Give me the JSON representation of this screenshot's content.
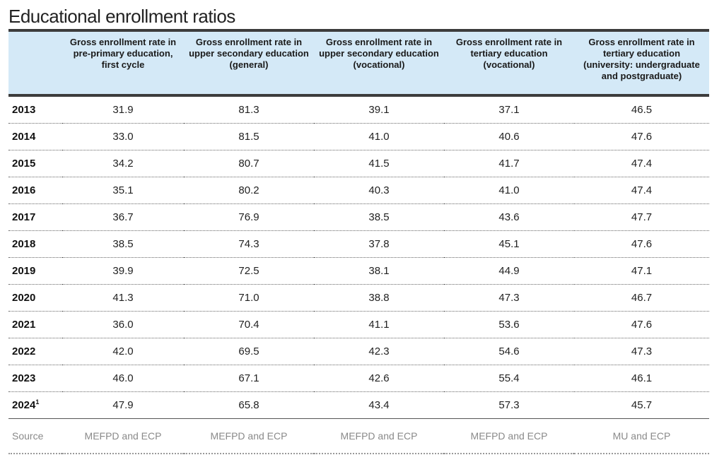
{
  "title": "Educational enrollment ratios",
  "headers": [
    "",
    "Gross enrollment rate in pre-primary education, first cycle",
    "Gross enrollment rate in upper secondary education (general)",
    "Gross enrollment rate in upper secondary education (vocational)",
    "Gross enrollment rate in tertiary education (vocational)",
    "Gross enrollment rate in tertiary education (university: undergraduate and postgraduate)"
  ],
  "rows": [
    {
      "year": "2013",
      "sup": "",
      "values": [
        "31.9",
        "81.3",
        "39.1",
        "37.1",
        "46.5"
      ]
    },
    {
      "year": "2014",
      "sup": "",
      "values": [
        "33.0",
        "81.5",
        "41.0",
        "40.6",
        "47.6"
      ]
    },
    {
      "year": "2015",
      "sup": "",
      "values": [
        "34.2",
        "80.7",
        "41.5",
        "41.7",
        "47.4"
      ]
    },
    {
      "year": "2016",
      "sup": "",
      "values": [
        "35.1",
        "80.2",
        "40.3",
        "41.0",
        "47.4"
      ]
    },
    {
      "year": "2017",
      "sup": "",
      "values": [
        "36.7",
        "76.9",
        "38.5",
        "43.6",
        "47.7"
      ]
    },
    {
      "year": "2018",
      "sup": "",
      "values": [
        "38.5",
        "74.3",
        "37.8",
        "45.1",
        "47.6"
      ]
    },
    {
      "year": "2019",
      "sup": "",
      "values": [
        "39.9",
        "72.5",
        "38.1",
        "44.9",
        "47.1"
      ]
    },
    {
      "year": "2020",
      "sup": "",
      "values": [
        "41.3",
        "71.0",
        "38.8",
        "47.3",
        "46.7"
      ]
    },
    {
      "year": "2021",
      "sup": "",
      "values": [
        "36.0",
        "70.4",
        "41.1",
        "53.6",
        "47.6"
      ]
    },
    {
      "year": "2022",
      "sup": "",
      "values": [
        "42.0",
        "69.5",
        "42.3",
        "54.6",
        "47.3"
      ]
    },
    {
      "year": "2023",
      "sup": "",
      "values": [
        "46.0",
        "67.1",
        "42.6",
        "55.4",
        "46.1"
      ]
    },
    {
      "year": "2024",
      "sup": "1",
      "values": [
        "47.9",
        "65.8",
        "43.4",
        "57.3",
        "45.7"
      ]
    }
  ],
  "source": {
    "label": "Source",
    "values": [
      "MEFPD and ECP",
      "MEFPD and ECP",
      "MEFPD and ECP",
      "MEFPD and ECP",
      "MU and ECP"
    ]
  }
}
